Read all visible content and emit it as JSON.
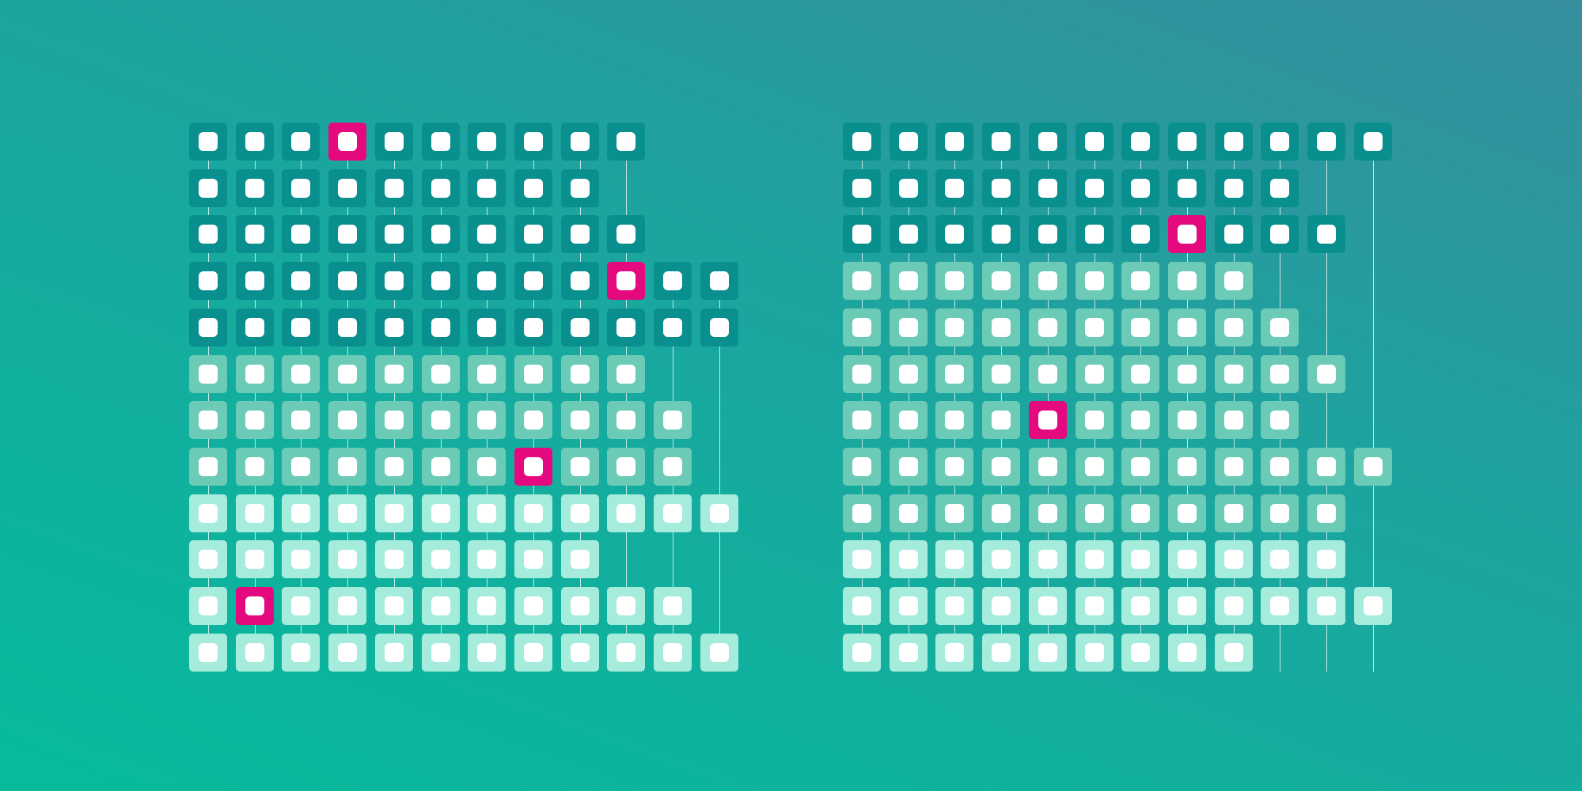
{
  "colors": {
    "background_start": "#06bb9c",
    "background_mid": "#1aa69f",
    "background_end": "#368e9f",
    "tier_dark": "#0a8f8f",
    "tier_medium": "#6ccbb7",
    "tier_light": "#a6ecdc",
    "highlight": "#e5097f",
    "dot": "#ffffff"
  },
  "grids": [
    {
      "name": "left",
      "rows": [
        {
          "tier": "dark",
          "count": 10,
          "highlight": [
            3
          ]
        },
        {
          "tier": "dark",
          "count": 9,
          "highlight": []
        },
        {
          "tier": "dark",
          "count": 10,
          "highlight": []
        },
        {
          "tier": "dark",
          "count": 12,
          "highlight": [
            9
          ]
        },
        {
          "tier": "dark",
          "count": 12,
          "highlight": []
        },
        {
          "tier": "medium",
          "count": 10,
          "highlight": []
        },
        {
          "tier": "medium",
          "count": 11,
          "highlight": []
        },
        {
          "tier": "medium",
          "count": 11,
          "highlight": [
            7
          ]
        },
        {
          "tier": "light",
          "count": 12,
          "highlight": []
        },
        {
          "tier": "light",
          "count": 9,
          "highlight": []
        },
        {
          "tier": "light",
          "count": 11,
          "highlight": [
            1
          ]
        },
        {
          "tier": "light",
          "count": 12,
          "highlight": []
        }
      ]
    },
    {
      "name": "right",
      "rows": [
        {
          "tier": "dark",
          "count": 12,
          "highlight": []
        },
        {
          "tier": "dark",
          "count": 10,
          "highlight": []
        },
        {
          "tier": "dark",
          "count": 11,
          "highlight": [
            7
          ]
        },
        {
          "tier": "medium",
          "count": 9,
          "highlight": []
        },
        {
          "tier": "medium",
          "count": 10,
          "highlight": []
        },
        {
          "tier": "medium",
          "count": 11,
          "highlight": []
        },
        {
          "tier": "medium",
          "count": 10,
          "highlight": [
            4
          ]
        },
        {
          "tier": "medium",
          "count": 12,
          "highlight": []
        },
        {
          "tier": "medium",
          "count": 11,
          "highlight": []
        },
        {
          "tier": "light",
          "count": 11,
          "highlight": []
        },
        {
          "tier": "light",
          "count": 12,
          "highlight": []
        },
        {
          "tier": "light",
          "count": 9,
          "highlight": []
        }
      ]
    }
  ]
}
